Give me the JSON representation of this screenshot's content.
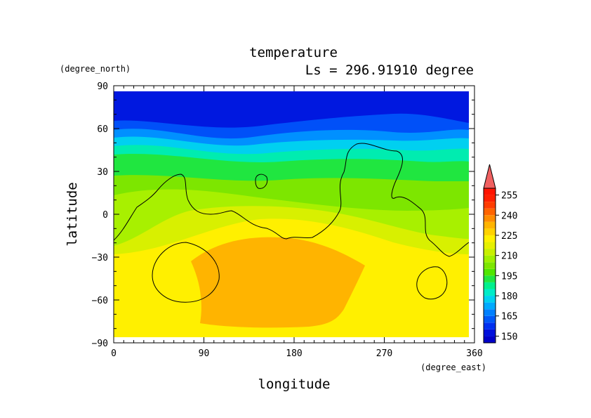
{
  "chart_data": {
    "type": "heatmap",
    "title": "temperature",
    "subtitle": "Ls = 296.91910 degree",
    "xlabel": "longitude",
    "ylabel": "latitude",
    "xunit": "(degree_east)",
    "yunit": "(degree_north)",
    "xlim": [
      0,
      360
    ],
    "ylim": [
      -90,
      90
    ],
    "xticks": [
      "0",
      "90",
      "180",
      "270",
      "360"
    ],
    "yticks": [
      "90",
      "60",
      "30",
      "0",
      "−30",
      "−60",
      "−90"
    ],
    "colorbar": {
      "levels": [
        145,
        150,
        155,
        160,
        165,
        170,
        175,
        180,
        185,
        190,
        195,
        200,
        205,
        210,
        215,
        220,
        225,
        230,
        235,
        240,
        245,
        250,
        255,
        260
      ],
      "labels": [
        "150",
        "165",
        "180",
        "195",
        "210",
        "225",
        "240",
        "255"
      ],
      "label_values": [
        150,
        165,
        180,
        195,
        210,
        225,
        240,
        255
      ],
      "colors": [
        "#0000c8",
        "#0010dc",
        "#0030f0",
        "#0058f8",
        "#0080ff",
        "#00aaff",
        "#00d2f0",
        "#00ecc8",
        "#00f08c",
        "#20e640",
        "#50e600",
        "#7de600",
        "#a0f000",
        "#c8f000",
        "#e6f000",
        "#fff000",
        "#ffd200",
        "#ffb400",
        "#ff8c00",
        "#ff6400",
        "#ff3c00",
        "#ff2000",
        "#ff1400",
        "#f06060"
      ]
    },
    "temperature_bands_by_latitude": [
      {
        "lat_range": [
          60,
          85
        ],
        "value": 150
      },
      {
        "lat_range": [
          50,
          60
        ],
        "value": 175
      },
      {
        "lat_range": [
          35,
          50
        ],
        "value": 190
      },
      {
        "lat_range": [
          15,
          35
        ],
        "value": 205
      },
      {
        "lat_range": [
          -20,
          15
        ],
        "value": 215
      },
      {
        "lat_range": [
          -85,
          -20
        ],
        "value": 222
      },
      {
        "lat_range": [
          -80,
          -30
        ],
        "lon_range": [
          40,
          220
        ],
        "value": 228
      }
    ],
    "contour_overlay": "topography (black lines)"
  }
}
